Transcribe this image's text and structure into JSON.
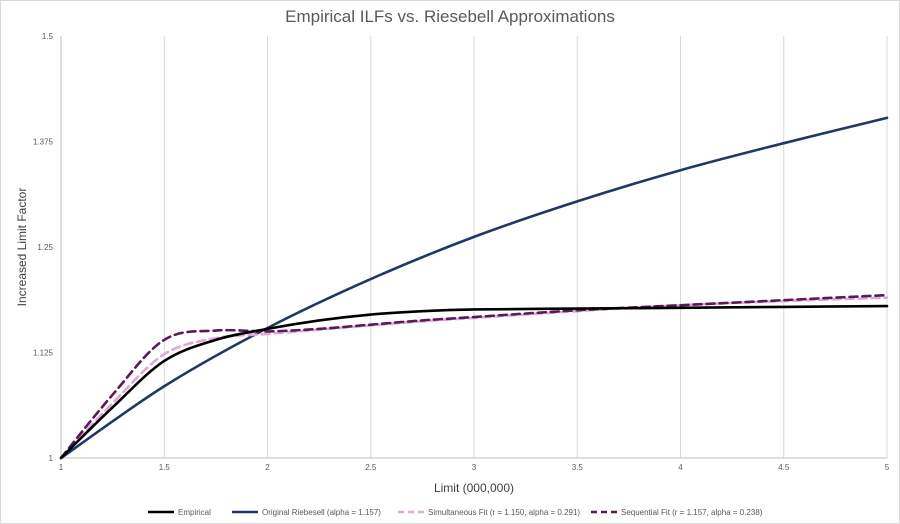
{
  "chart_data": {
    "type": "line",
    "title": "Empirical ILFs vs. Riesebell Approximations",
    "xlabel": "Limit (000,000)",
    "ylabel": "Increased Limit Factor",
    "xlim": [
      1,
      5
    ],
    "ylim": [
      1,
      1.5
    ],
    "x_ticks": [
      "1",
      "1.5",
      "2",
      "2.5",
      "3",
      "3.5",
      "4",
      "4.5",
      "5"
    ],
    "y_ticks": [
      "1",
      "1.125",
      "1.25",
      "1.375",
      "1.5"
    ],
    "grid": "vertical",
    "legend_position": "bottom",
    "series": [
      {
        "name": "Empirical",
        "color": "#000000",
        "dash": "solid",
        "x": [
          1,
          1.25,
          1.5,
          1.75,
          2,
          2.25,
          2.5,
          2.75,
          3,
          3.5,
          4,
          4.5,
          5
        ],
        "y": [
          1,
          1.06,
          1.115,
          1.14,
          1.153,
          1.163,
          1.17,
          1.174,
          1.176,
          1.177,
          1.178,
          1.179,
          1.18
        ]
      },
      {
        "name": "Original Riebesell (alpha = 1.157)",
        "color": "#203864",
        "dash": "solid",
        "x": [
          1,
          1.5,
          2,
          2.5,
          3,
          3.5,
          4,
          4.5,
          5
        ],
        "y": [
          1,
          1.085,
          1.154,
          1.212,
          1.262,
          1.304,
          1.341,
          1.373,
          1.403
        ]
      },
      {
        "name": "Simultaneous Fit (r = 1.150, alpha = 0.291)",
        "color": "#e0a7d8",
        "dash": "dashed",
        "x": [
          1,
          1.25,
          1.5,
          1.75,
          2,
          2.25,
          2.5,
          2.75,
          3,
          3.5,
          4,
          4.5,
          5
        ],
        "y": [
          1,
          1.065,
          1.123,
          1.142,
          1.147,
          1.152,
          1.157,
          1.162,
          1.166,
          1.174,
          1.181,
          1.186,
          1.19
        ]
      },
      {
        "name": "Sequential Fit (r = 1.157, alpha = 0.238)",
        "color": "#5b1a55",
        "dash": "dashed",
        "x": [
          1,
          1.25,
          1.5,
          1.75,
          2,
          2.25,
          2.5,
          2.75,
          3,
          3.5,
          4,
          4.5,
          5
        ],
        "y": [
          1,
          1.075,
          1.14,
          1.151,
          1.15,
          1.153,
          1.158,
          1.163,
          1.167,
          1.175,
          1.181,
          1.187,
          1.193
        ]
      }
    ]
  }
}
